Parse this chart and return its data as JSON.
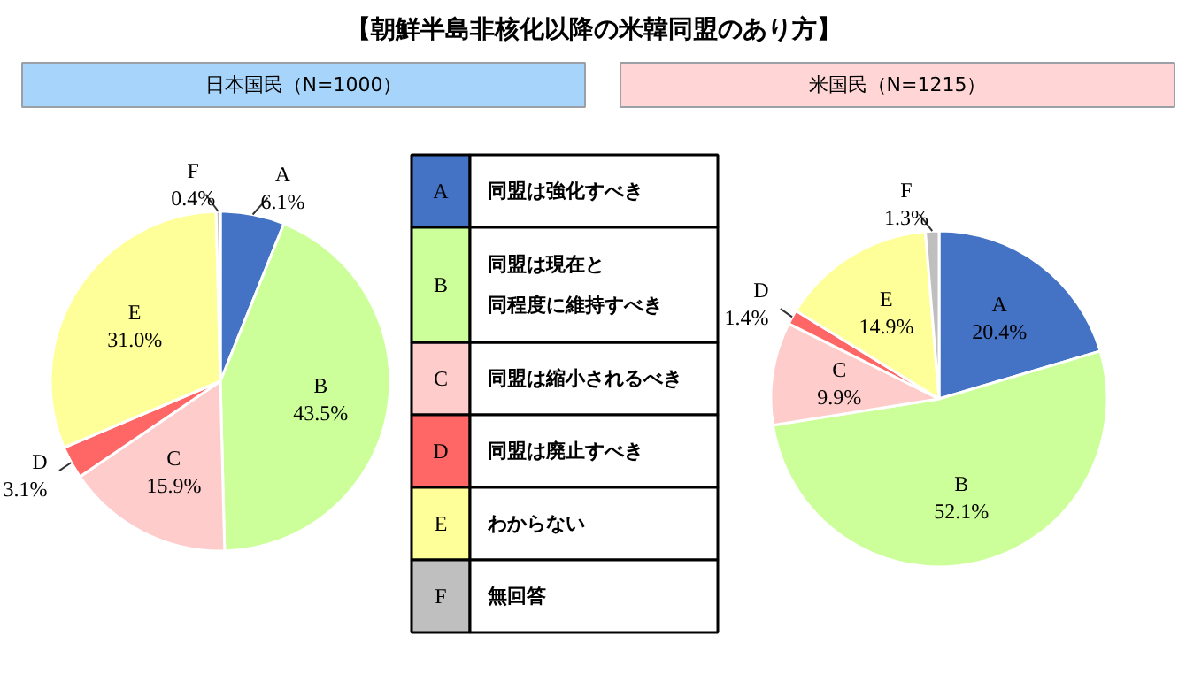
{
  "chart_data": [
    {
      "type": "pie",
      "title": "日本国民（N=1000）",
      "categories": [
        "A",
        "B",
        "C",
        "D",
        "E",
        "F"
      ],
      "values": [
        6.1,
        43.5,
        15.9,
        3.1,
        31.0,
        0.4
      ],
      "colors": [
        "#4472c4",
        "#ccff99",
        "#ffcccc",
        "#ff6666",
        "#ffff99",
        "#bfbfbf"
      ],
      "value_labels": [
        "6.1%",
        "43.5%",
        "15.9%",
        "3.1%",
        "31.0%",
        "0.4%"
      ]
    },
    {
      "type": "other",
      "title": "【朝鮮半島非核化以降の米韓同盟のあり方】",
      "annotations": [
        "同盟は強化すべき",
        "同盟は現在と同程度に維持すべき",
        "同盟は縮小されるべき",
        "同盟は廃止すべき",
        "わからない",
        "無回答"
      ]
    },
    {
      "type": "pie",
      "title": "米国民（N=1215）",
      "categories": [
        "A",
        "B",
        "C",
        "D",
        "E",
        "F"
      ],
      "values": [
        20.4,
        52.1,
        9.9,
        1.4,
        14.9,
        1.3
      ],
      "colors": [
        "#4472c4",
        "#ccff99",
        "#ffcccc",
        "#ff6666",
        "#ffff99",
        "#bfbfbf"
      ],
      "value_labels": [
        "20.4%",
        "52.1%",
        "9.9%",
        "1.4%",
        "14.9%",
        "1.3%"
      ]
    }
  ]
}
